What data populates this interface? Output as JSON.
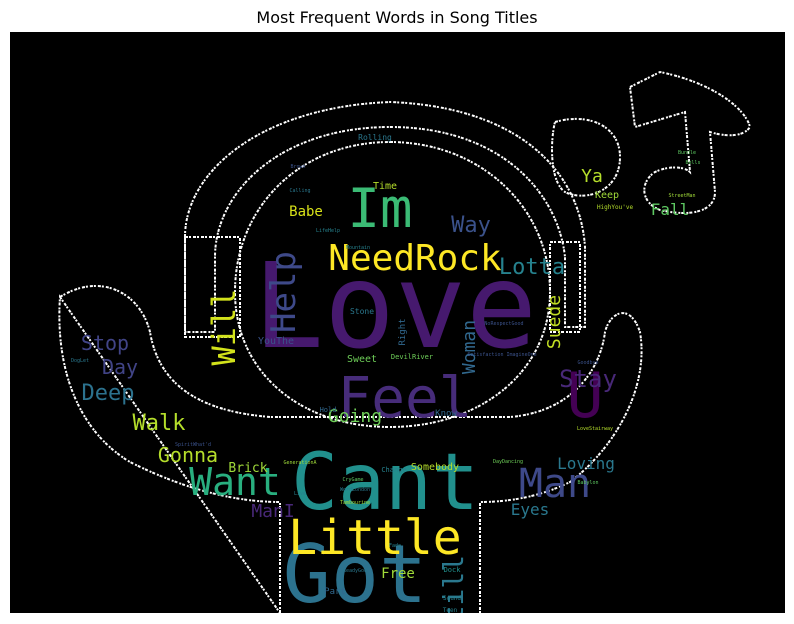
{
  "title": "Most Frequent Words in Song Titles",
  "chart_data": {
    "type": "wordcloud",
    "title": "Most Frequent Words in Song Titles",
    "background": "#000000",
    "colormap": "viridis",
    "mask": "person wearing headphones with a music note",
    "words": [
      {
        "text": "Love",
        "weight": 100,
        "color": "#46196e"
      },
      {
        "text": "Cant",
        "weight": 72,
        "color": "#21908d"
      },
      {
        "text": "Got",
        "weight": 70,
        "color": "#2c728e"
      },
      {
        "text": "Feel",
        "weight": 55,
        "color": "#472c7a"
      },
      {
        "text": "Im",
        "weight": 52,
        "color": "#3bbb75"
      },
      {
        "text": "U",
        "weight": 48,
        "color": "#440154"
      },
      {
        "text": "Little",
        "weight": 42,
        "color": "#fde725"
      },
      {
        "text": "Want",
        "weight": 36,
        "color": "#29af7f"
      },
      {
        "text": "Man",
        "weight": 36,
        "color": "#3e4989"
      },
      {
        "text": "NeedRock",
        "weight": 34,
        "color": "#fde725"
      },
      {
        "text": "Help",
        "weight": 32,
        "color": "#3e4989"
      },
      {
        "text": "Will",
        "weight": 32,
        "color": "#d2e21b"
      },
      {
        "text": "Still",
        "weight": 26,
        "color": "#2a788e"
      },
      {
        "text": "Stay",
        "weight": 24,
        "color": "#482878"
      },
      {
        "text": "Lotta",
        "weight": 22,
        "color": "#26828e"
      },
      {
        "text": "Way",
        "weight": 22,
        "color": "#3b528b"
      },
      {
        "text": "Deep",
        "weight": 22,
        "color": "#2c728e"
      },
      {
        "text": "Gonna",
        "weight": 20,
        "color": "#b5de2b"
      },
      {
        "text": "Walk",
        "weight": 20,
        "color": "#b5de2b"
      },
      {
        "text": "Day",
        "weight": 20,
        "color": "#414487"
      },
      {
        "text": "Stop",
        "weight": 20,
        "color": "#414487"
      },
      {
        "text": "Going",
        "weight": 18,
        "color": "#6ece58"
      },
      {
        "text": "Woman",
        "weight": 18,
        "color": "#31688e"
      },
      {
        "text": "Suede",
        "weight": 18,
        "color": "#c2df23"
      },
      {
        "text": "Loving",
        "weight": 16,
        "color": "#2a788e"
      },
      {
        "text": "Eyes",
        "weight": 16,
        "color": "#2a788e"
      },
      {
        "text": "ManI",
        "weight": 16,
        "color": "#482878"
      },
      {
        "text": "Brick",
        "weight": 14,
        "color": "#a0da39"
      },
      {
        "text": "Free",
        "weight": 14,
        "color": "#a0da39"
      },
      {
        "text": "Babe",
        "weight": 14,
        "color": "#d8e219"
      },
      {
        "text": "Fall",
        "weight": 16,
        "color": "#5ec962"
      },
      {
        "text": "Ya",
        "weight": 16,
        "color": "#b5de2b"
      },
      {
        "text": "Keep",
        "weight": 10,
        "color": "#a0da39"
      },
      {
        "text": "Time",
        "weight": 10,
        "color": "#b5de2b"
      },
      {
        "text": "Sweet",
        "weight": 10,
        "color": "#6ece58"
      },
      {
        "text": "Somebody",
        "weight": 10,
        "color": "#b5de2b"
      },
      {
        "text": "YouThe",
        "weight": 10,
        "color": "#3b528b"
      },
      {
        "text": "Part",
        "weight": 9,
        "color": "#31688e"
      },
      {
        "text": "Know",
        "weight": 9,
        "color": "#31688e"
      },
      {
        "text": "Right",
        "weight": 9,
        "color": "#31688e"
      },
      {
        "text": "Stone",
        "weight": 8,
        "color": "#2a788e"
      },
      {
        "text": "Rolling",
        "weight": 8,
        "color": "#2a788e"
      },
      {
        "text": "Change",
        "weight": 7,
        "color": "#26828e"
      },
      {
        "text": "DevilRiver",
        "weight": 7,
        "color": "#6ece58"
      },
      {
        "text": "Hold",
        "weight": 7,
        "color": "#31688e"
      },
      {
        "text": "Dock",
        "weight": 7,
        "color": "#21908d"
      },
      {
        "text": "Lost",
        "weight": 7,
        "color": "#26828e"
      },
      {
        "text": "Teen",
        "weight": 6,
        "color": "#26828e"
      },
      {
        "text": "Sound",
        "weight": 6,
        "color": "#26828e"
      },
      {
        "text": "HighYou've",
        "weight": 6,
        "color": "#b5de2b"
      },
      {
        "text": "Satisfaction ImagineOne",
        "weight": 5,
        "color": "#3b528b"
      },
      {
        "text": "DayDancing",
        "weight": 5,
        "color": "#6ece58"
      },
      {
        "text": "GenerationA",
        "weight": 5,
        "color": "#a0da39"
      },
      {
        "text": "CryGame",
        "weight": 5,
        "color": "#5ec962"
      },
      {
        "text": "WordLondon",
        "weight": 5,
        "color": "#2a788e"
      },
      {
        "text": "ReadyGod",
        "weight": 5,
        "color": "#2a788e"
      },
      {
        "text": "Babylon",
        "weight": 5,
        "color": "#5ec962"
      },
      {
        "text": "Goodbye",
        "weight": 5,
        "color": "#3b528b"
      },
      {
        "text": "LoveStairway",
        "weight": 5,
        "color": "#b5de2b"
      },
      {
        "text": "NoRespectGood",
        "weight": 5,
        "color": "#3b528b"
      },
      {
        "text": "SpiritWhat'd",
        "weight": 5,
        "color": "#3b528b"
      },
      {
        "text": "Calling",
        "weight": 5,
        "color": "#2a788e"
      },
      {
        "text": "LifeHelp",
        "weight": 5,
        "color": "#26828e"
      },
      {
        "text": "Mountain",
        "weight": 5,
        "color": "#26828e"
      },
      {
        "text": "Bundle",
        "weight": 5,
        "color": "#5ec962"
      },
      {
        "text": "Bells",
        "weight": 5,
        "color": "#5ec962"
      },
      {
        "text": "StreetMan",
        "weight": 5,
        "color": "#a0da39"
      },
      {
        "text": "DogLet",
        "weight": 5,
        "color": "#2a788e"
      },
      {
        "text": "Brown",
        "weight": 5,
        "color": "#3b528b"
      },
      {
        "text": "Fade",
        "weight": 5,
        "color": "#26828e"
      },
      {
        "text": "Tambourine",
        "weight": 5,
        "color": "#a0da39"
      },
      {
        "text": "Live",
        "weight": 5,
        "color": "#26828e"
      }
    ]
  }
}
